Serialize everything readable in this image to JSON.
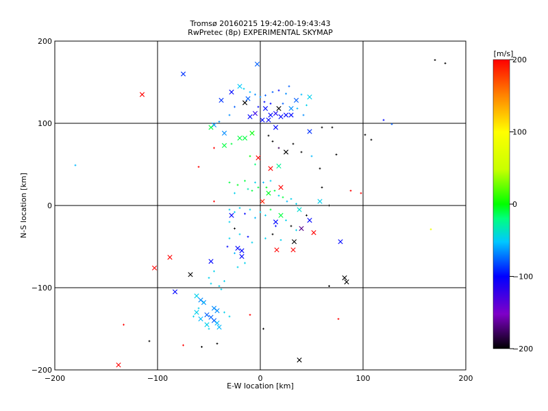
{
  "chart_data": {
    "type": "scatter",
    "title": "Tromsø 20160215 19:42:00-19:43:43",
    "subtitle": "RwPretec (8p) EXPERIMENTAL SKYMAP",
    "xlabel": "E-W location [km]",
    "ylabel": "N-S location [km]",
    "xlim": [
      -200,
      200
    ],
    "ylim": [
      -200,
      200
    ],
    "xticks": [
      -200,
      -100,
      0,
      100,
      200
    ],
    "yticks": [
      -200,
      -100,
      0,
      100,
      200
    ],
    "grid": true,
    "colorbar": {
      "label": "[m/s]",
      "min": -200,
      "max": 200,
      "ticks": [
        -200,
        -100,
        0,
        100,
        200
      ],
      "colors": [
        "#000000",
        "#7f00c8",
        "#0000ff",
        "#00c8ff",
        "#00ff7f",
        "#00ff00",
        "#c8ff00",
        "#ffff00",
        "#ff8000",
        "#ff0000"
      ]
    },
    "points": [
      {
        "x": -75,
        "y": 160,
        "v": -100,
        "m": "x"
      },
      {
        "x": -3,
        "y": 172,
        "v": -90,
        "m": "x"
      },
      {
        "x": -115,
        "y": 135,
        "v": 200,
        "m": "x"
      },
      {
        "x": -28,
        "y": 138,
        "v": -110,
        "m": "x"
      },
      {
        "x": -20,
        "y": 145,
        "v": -65,
        "m": "x"
      },
      {
        "x": -38,
        "y": 128,
        "v": -100,
        "m": "x"
      },
      {
        "x": -15,
        "y": 125,
        "v": -200,
        "m": "x"
      },
      {
        "x": -12,
        "y": 130,
        "v": -90,
        "m": "x"
      },
      {
        "x": 5,
        "y": 118,
        "v": -110,
        "m": "x"
      },
      {
        "x": 10,
        "y": 110,
        "v": -110,
        "m": "x"
      },
      {
        "x": 15,
        "y": 112,
        "v": -120,
        "m": "x"
      },
      {
        "x": 20,
        "y": 108,
        "v": -110,
        "m": "x"
      },
      {
        "x": 25,
        "y": 110,
        "v": -110,
        "m": "x"
      },
      {
        "x": 2,
        "y": 104,
        "v": -110,
        "m": "x"
      },
      {
        "x": 8,
        "y": 104,
        "v": -110,
        "m": "x"
      },
      {
        "x": 30,
        "y": 118,
        "v": -80,
        "m": "x"
      },
      {
        "x": 35,
        "y": 128,
        "v": -90,
        "m": "x"
      },
      {
        "x": 48,
        "y": 132,
        "v": -60,
        "m": "x"
      },
      {
        "x": 30,
        "y": 110,
        "v": -110,
        "m": "x"
      },
      {
        "x": 18,
        "y": 118,
        "v": -200,
        "m": "x"
      },
      {
        "x": -5,
        "y": 112,
        "v": -130,
        "m": "x"
      },
      {
        "x": -10,
        "y": 108,
        "v": -110,
        "m": "x"
      },
      {
        "x": 15,
        "y": 95,
        "v": -110,
        "m": "x"
      },
      {
        "x": 48,
        "y": 90,
        "v": -100,
        "m": "x"
      },
      {
        "x": -45,
        "y": 98,
        "v": -80,
        "m": "x"
      },
      {
        "x": -48,
        "y": 95,
        "v": 0,
        "m": "x"
      },
      {
        "x": -35,
        "y": 88,
        "v": -80,
        "m": "x"
      },
      {
        "x": -8,
        "y": 88,
        "v": 20,
        "m": "x"
      },
      {
        "x": -20,
        "y": 82,
        "v": 0,
        "m": "x"
      },
      {
        "x": -15,
        "y": 82,
        "v": 0,
        "m": "x"
      },
      {
        "x": -35,
        "y": 73,
        "v": 0,
        "m": "x"
      },
      {
        "x": 25,
        "y": 65,
        "v": -200,
        "m": "x"
      },
      {
        "x": -2,
        "y": 58,
        "v": 200,
        "m": "x"
      },
      {
        "x": 10,
        "y": 45,
        "v": 200,
        "m": "x"
      },
      {
        "x": 18,
        "y": 48,
        "v": -30,
        "m": "x"
      },
      {
        "x": 20,
        "y": 22,
        "v": 200,
        "m": "x"
      },
      {
        "x": 2,
        "y": 5,
        "v": 190,
        "m": "x"
      },
      {
        "x": 8,
        "y": 15,
        "v": 10,
        "m": "x"
      },
      {
        "x": 58,
        "y": 5,
        "v": -60,
        "m": "x"
      },
      {
        "x": 38,
        "y": -5,
        "v": -50,
        "m": "x"
      },
      {
        "x": 48,
        "y": -18,
        "v": -110,
        "m": "x"
      },
      {
        "x": 40,
        "y": -28,
        "v": -170,
        "m": "x"
      },
      {
        "x": 20,
        "y": -12,
        "v": 0,
        "m": "x"
      },
      {
        "x": 15,
        "y": -20,
        "v": -110,
        "m": "x"
      },
      {
        "x": -28,
        "y": -12,
        "v": -110,
        "m": "x"
      },
      {
        "x": 52,
        "y": -33,
        "v": 200,
        "m": "x"
      },
      {
        "x": 33,
        "y": -44,
        "v": -200,
        "m": "x"
      },
      {
        "x": 32,
        "y": -54,
        "v": 200,
        "m": "x"
      },
      {
        "x": 16,
        "y": -54,
        "v": 200,
        "m": "x"
      },
      {
        "x": 78,
        "y": -44,
        "v": -110,
        "m": "x"
      },
      {
        "x": -18,
        "y": -55,
        "v": -110,
        "m": "x"
      },
      {
        "x": -22,
        "y": -52,
        "v": -110,
        "m": "x"
      },
      {
        "x": -18,
        "y": -62,
        "v": -110,
        "m": "x"
      },
      {
        "x": -48,
        "y": -68,
        "v": -110,
        "m": "x"
      },
      {
        "x": -88,
        "y": -63,
        "v": 200,
        "m": "x"
      },
      {
        "x": -103,
        "y": -76,
        "v": 200,
        "m": "x"
      },
      {
        "x": -68,
        "y": -84,
        "v": -200,
        "m": "x"
      },
      {
        "x": -83,
        "y": -105,
        "v": -110,
        "m": "x"
      },
      {
        "x": -62,
        "y": -110,
        "v": -60,
        "m": "x"
      },
      {
        "x": -58,
        "y": -115,
        "v": -80,
        "m": "x"
      },
      {
        "x": -55,
        "y": -118,
        "v": -80,
        "m": "x"
      },
      {
        "x": -45,
        "y": -125,
        "v": -80,
        "m": "x"
      },
      {
        "x": -42,
        "y": -128,
        "v": -80,
        "m": "x"
      },
      {
        "x": -52,
        "y": -133,
        "v": -90,
        "m": "x"
      },
      {
        "x": -48,
        "y": -136,
        "v": -90,
        "m": "x"
      },
      {
        "x": -45,
        "y": -140,
        "v": -90,
        "m": "x"
      },
      {
        "x": -42,
        "y": -143,
        "v": -70,
        "m": "x"
      },
      {
        "x": -58,
        "y": -138,
        "v": -70,
        "m": "x"
      },
      {
        "x": -52,
        "y": -145,
        "v": -60,
        "m": "x"
      },
      {
        "x": -62,
        "y": -130,
        "v": -60,
        "m": "x"
      },
      {
        "x": -40,
        "y": -148,
        "v": -70,
        "m": "x"
      },
      {
        "x": 82,
        "y": -88,
        "v": -200,
        "m": "x"
      },
      {
        "x": 84,
        "y": -93,
        "v": -200,
        "m": "x"
      },
      {
        "x": 38,
        "y": -188,
        "v": -200,
        "m": "x"
      },
      {
        "x": -138,
        "y": -194,
        "v": 200,
        "m": "x"
      },
      {
        "x": -16,
        "y": 142,
        "v": -60,
        "m": "+"
      },
      {
        "x": -10,
        "y": 138,
        "v": -70,
        "m": "+"
      },
      {
        "x": -5,
        "y": 135,
        "v": -80,
        "m": "+"
      },
      {
        "x": 0,
        "y": 132,
        "v": -80,
        "m": "+"
      },
      {
        "x": 5,
        "y": 134,
        "v": -90,
        "m": "+"
      },
      {
        "x": 12,
        "y": 138,
        "v": -90,
        "m": "+"
      },
      {
        "x": 18,
        "y": 140,
        "v": -110,
        "m": "+"
      },
      {
        "x": 25,
        "y": 136,
        "v": -80,
        "m": "+"
      },
      {
        "x": 28,
        "y": 145,
        "v": -90,
        "m": "+"
      },
      {
        "x": 40,
        "y": 135,
        "v": -70,
        "m": "+"
      },
      {
        "x": 45,
        "y": 122,
        "v": -60,
        "m": "+"
      },
      {
        "x": -2,
        "y": 120,
        "v": -110,
        "m": "+"
      },
      {
        "x": 4,
        "y": 126,
        "v": -110,
        "m": "+"
      },
      {
        "x": 10,
        "y": 124,
        "v": -110,
        "m": "+"
      },
      {
        "x": 22,
        "y": 124,
        "v": -90,
        "m": "+"
      },
      {
        "x": 36,
        "y": 118,
        "v": -70,
        "m": "+"
      },
      {
        "x": 42,
        "y": 110,
        "v": -80,
        "m": "+"
      },
      {
        "x": -25,
        "y": 120,
        "v": -90,
        "m": "+"
      },
      {
        "x": -30,
        "y": 110,
        "v": -80,
        "m": "+"
      },
      {
        "x": -40,
        "y": 102,
        "v": -80,
        "m": "+"
      },
      {
        "x": 60,
        "y": 95,
        "v": -200,
        "m": "+"
      },
      {
        "x": 70,
        "y": 95,
        "v": -200,
        "m": "+"
      },
      {
        "x": 102,
        "y": 86,
        "v": -200,
        "m": "+"
      },
      {
        "x": 108,
        "y": 80,
        "v": -200,
        "m": "+"
      },
      {
        "x": 120,
        "y": 104,
        "v": -110,
        "m": "+"
      },
      {
        "x": 128,
        "y": 99,
        "v": -90,
        "m": "+"
      },
      {
        "x": 170,
        "y": 177,
        "v": -200,
        "m": "+"
      },
      {
        "x": 180,
        "y": 173,
        "v": -200,
        "m": "+"
      },
      {
        "x": -180,
        "y": 49,
        "v": -70,
        "m": "+"
      },
      {
        "x": -60,
        "y": 47,
        "v": 200,
        "m": "+"
      },
      {
        "x": -45,
        "y": 70,
        "v": 200,
        "m": "+"
      },
      {
        "x": -28,
        "y": 75,
        "v": 0,
        "m": "+"
      },
      {
        "x": -10,
        "y": 60,
        "v": 20,
        "m": "+"
      },
      {
        "x": -5,
        "y": 50,
        "v": -20,
        "m": "+"
      },
      {
        "x": 8,
        "y": 85,
        "v": -200,
        "m": "+"
      },
      {
        "x": 12,
        "y": 78,
        "v": -200,
        "m": "+"
      },
      {
        "x": 18,
        "y": 70,
        "v": -180,
        "m": "+"
      },
      {
        "x": 32,
        "y": 75,
        "v": -200,
        "m": "+"
      },
      {
        "x": 40,
        "y": 65,
        "v": -200,
        "m": "+"
      },
      {
        "x": 50,
        "y": 60,
        "v": -70,
        "m": "+"
      },
      {
        "x": 58,
        "y": 45,
        "v": -200,
        "m": "+"
      },
      {
        "x": 74,
        "y": 62,
        "v": -200,
        "m": "+"
      },
      {
        "x": 88,
        "y": 18,
        "v": 200,
        "m": "+"
      },
      {
        "x": 98,
        "y": 15,
        "v": 200,
        "m": "+"
      },
      {
        "x": 60,
        "y": 22,
        "v": -200,
        "m": "+"
      },
      {
        "x": 67,
        "y": 0,
        "v": -200,
        "m": "+"
      },
      {
        "x": -45,
        "y": 5,
        "v": 200,
        "m": "+"
      },
      {
        "x": -30,
        "y": 28,
        "v": 0,
        "m": "+"
      },
      {
        "x": -25,
        "y": 15,
        "v": -60,
        "m": "+"
      },
      {
        "x": -22,
        "y": 25,
        "v": 10,
        "m": "+"
      },
      {
        "x": -15,
        "y": 30,
        "v": 0,
        "m": "+"
      },
      {
        "x": -12,
        "y": 20,
        "v": -40,
        "m": "+"
      },
      {
        "x": -8,
        "y": 18,
        "v": 0,
        "m": "+"
      },
      {
        "x": -5,
        "y": 28,
        "v": -60,
        "m": "+"
      },
      {
        "x": -2,
        "y": 22,
        "v": 0,
        "m": "+"
      },
      {
        "x": 3,
        "y": 28,
        "v": -70,
        "m": "+"
      },
      {
        "x": 6,
        "y": 22,
        "v": 10,
        "m": "+"
      },
      {
        "x": 10,
        "y": 30,
        "v": -60,
        "m": "+"
      },
      {
        "x": 14,
        "y": 18,
        "v": 0,
        "m": "+"
      },
      {
        "x": 18,
        "y": 12,
        "v": -60,
        "m": "+"
      },
      {
        "x": 22,
        "y": 10,
        "v": 0,
        "m": "+"
      },
      {
        "x": 26,
        "y": 5,
        "v": -70,
        "m": "+"
      },
      {
        "x": 30,
        "y": 8,
        "v": -60,
        "m": "+"
      },
      {
        "x": 35,
        "y": 2,
        "v": -60,
        "m": "+"
      },
      {
        "x": -30,
        "y": -5,
        "v": -60,
        "m": "+"
      },
      {
        "x": -25,
        "y": -8,
        "v": -60,
        "m": "+"
      },
      {
        "x": -20,
        "y": -3,
        "v": -60,
        "m": "+"
      },
      {
        "x": -15,
        "y": -10,
        "v": -110,
        "m": "+"
      },
      {
        "x": -10,
        "y": -5,
        "v": -60,
        "m": "+"
      },
      {
        "x": -5,
        "y": -15,
        "v": -70,
        "m": "+"
      },
      {
        "x": 0,
        "y": -8,
        "v": -60,
        "m": "+"
      },
      {
        "x": 5,
        "y": -12,
        "v": -60,
        "m": "+"
      },
      {
        "x": 10,
        "y": -5,
        "v": 0,
        "m": "+"
      },
      {
        "x": 15,
        "y": -25,
        "v": -110,
        "m": "+"
      },
      {
        "x": 25,
        "y": -18,
        "v": -60,
        "m": "+"
      },
      {
        "x": 30,
        "y": -25,
        "v": -200,
        "m": "+"
      },
      {
        "x": 35,
        "y": -30,
        "v": -60,
        "m": "+"
      },
      {
        "x": 45,
        "y": -12,
        "v": -200,
        "m": "+"
      },
      {
        "x": -30,
        "y": -20,
        "v": -60,
        "m": "+"
      },
      {
        "x": -25,
        "y": -28,
        "v": -200,
        "m": "+"
      },
      {
        "x": -20,
        "y": -35,
        "v": -60,
        "m": "+"
      },
      {
        "x": -12,
        "y": -38,
        "v": -110,
        "m": "+"
      },
      {
        "x": -8,
        "y": -45,
        "v": -60,
        "m": "+"
      },
      {
        "x": -30,
        "y": -40,
        "v": -60,
        "m": "+"
      },
      {
        "x": -32,
        "y": -50,
        "v": -110,
        "m": "+"
      },
      {
        "x": -25,
        "y": -58,
        "v": -70,
        "m": "+"
      },
      {
        "x": -15,
        "y": -70,
        "v": -60,
        "m": "+"
      },
      {
        "x": -22,
        "y": -75,
        "v": -60,
        "m": "+"
      },
      {
        "x": -45,
        "y": -80,
        "v": -60,
        "m": "+"
      },
      {
        "x": -50,
        "y": -88,
        "v": -60,
        "m": "+"
      },
      {
        "x": -48,
        "y": -95,
        "v": -60,
        "m": "+"
      },
      {
        "x": -40,
        "y": -98,
        "v": -60,
        "m": "+"
      },
      {
        "x": -35,
        "y": -92,
        "v": -60,
        "m": "+"
      },
      {
        "x": -38,
        "y": -102,
        "v": -60,
        "m": "+"
      },
      {
        "x": -55,
        "y": -118,
        "v": -60,
        "m": "+"
      },
      {
        "x": -60,
        "y": -125,
        "v": -60,
        "m": "+"
      },
      {
        "x": -35,
        "y": -130,
        "v": -60,
        "m": "+"
      },
      {
        "x": -30,
        "y": -135,
        "v": -60,
        "m": "+"
      },
      {
        "x": -50,
        "y": -150,
        "v": -60,
        "m": "+"
      },
      {
        "x": -65,
        "y": -135,
        "v": -60,
        "m": "+"
      },
      {
        "x": 5,
        "y": -40,
        "v": -60,
        "m": "+"
      },
      {
        "x": 12,
        "y": -35,
        "v": -200,
        "m": "+"
      },
      {
        "x": 20,
        "y": -42,
        "v": -60,
        "m": "+"
      },
      {
        "x": -133,
        "y": -145,
        "v": 200,
        "m": "+"
      },
      {
        "x": -108,
        "y": -165,
        "v": -200,
        "m": "+"
      },
      {
        "x": -75,
        "y": -170,
        "v": 200,
        "m": "+"
      },
      {
        "x": -57,
        "y": -172,
        "v": -200,
        "m": "+"
      },
      {
        "x": -42,
        "y": -168,
        "v": -200,
        "m": "+"
      },
      {
        "x": -10,
        "y": -133,
        "v": 200,
        "m": "+"
      },
      {
        "x": 3,
        "y": -150,
        "v": -200,
        "m": "+"
      },
      {
        "x": 76,
        "y": -138,
        "v": 200,
        "m": "+"
      },
      {
        "x": 67,
        "y": -98,
        "v": -200,
        "m": "+"
      },
      {
        "x": 166,
        "y": -29,
        "v": 100,
        "m": "+"
      }
    ]
  }
}
